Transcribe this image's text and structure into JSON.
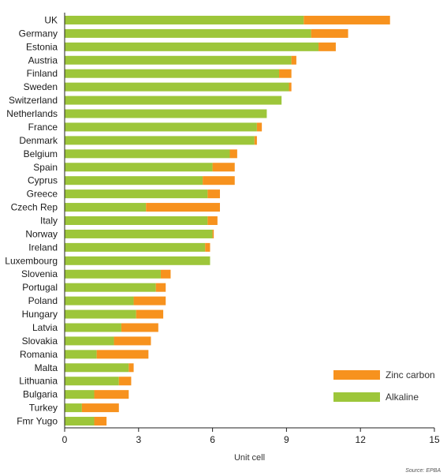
{
  "chart_data": {
    "type": "bar",
    "orientation": "horizontal",
    "stacked": true,
    "categories": [
      "UK",
      "Germany",
      "Estonia",
      "Austria",
      "Finland",
      "Sweden",
      "Switzerland",
      "Netherlands",
      "France",
      "Denmark",
      "Belgium",
      "Spain",
      "Cyprus",
      "Greece",
      "Czech Rep",
      "Italy",
      "Norway",
      "Ireland",
      "Luxembourg",
      "Slovenia",
      "Portugal",
      "Poland",
      "Hungary",
      "Latvia",
      "Slovakia",
      "Romania",
      "Malta",
      "Lithuania",
      "Bulgaria",
      "Turkey",
      "Fmr Yugo"
    ],
    "series": [
      {
        "name": "Alkaline",
        "color": "#9dc63a",
        "values": [
          9.7,
          10.0,
          10.3,
          9.2,
          8.7,
          9.1,
          8.8,
          8.2,
          7.8,
          7.7,
          6.7,
          6.0,
          5.6,
          5.8,
          3.3,
          5.8,
          6.0,
          5.7,
          5.9,
          3.9,
          3.7,
          2.8,
          2.9,
          2.3,
          2.0,
          1.3,
          2.6,
          2.2,
          1.2,
          0.7,
          1.2
        ]
      },
      {
        "name": "Zinc carbon",
        "color": "#f7921e",
        "values": [
          3.5,
          1.5,
          0.7,
          0.2,
          0.5,
          0.1,
          0.0,
          0.0,
          0.2,
          0.1,
          0.3,
          0.9,
          1.3,
          0.5,
          3.0,
          0.4,
          0.05,
          0.2,
          0.0,
          0.4,
          0.4,
          1.3,
          1.1,
          1.5,
          1.5,
          2.1,
          0.2,
          0.5,
          1.4,
          1.5,
          0.5
        ]
      }
    ],
    "xlabel": "Unit cell",
    "xlim": [
      0,
      15
    ],
    "xticks": [
      0,
      3,
      6,
      9,
      12,
      15
    ],
    "grid": false,
    "legend_position": "bottom-right",
    "source": "Source: EPBA"
  }
}
